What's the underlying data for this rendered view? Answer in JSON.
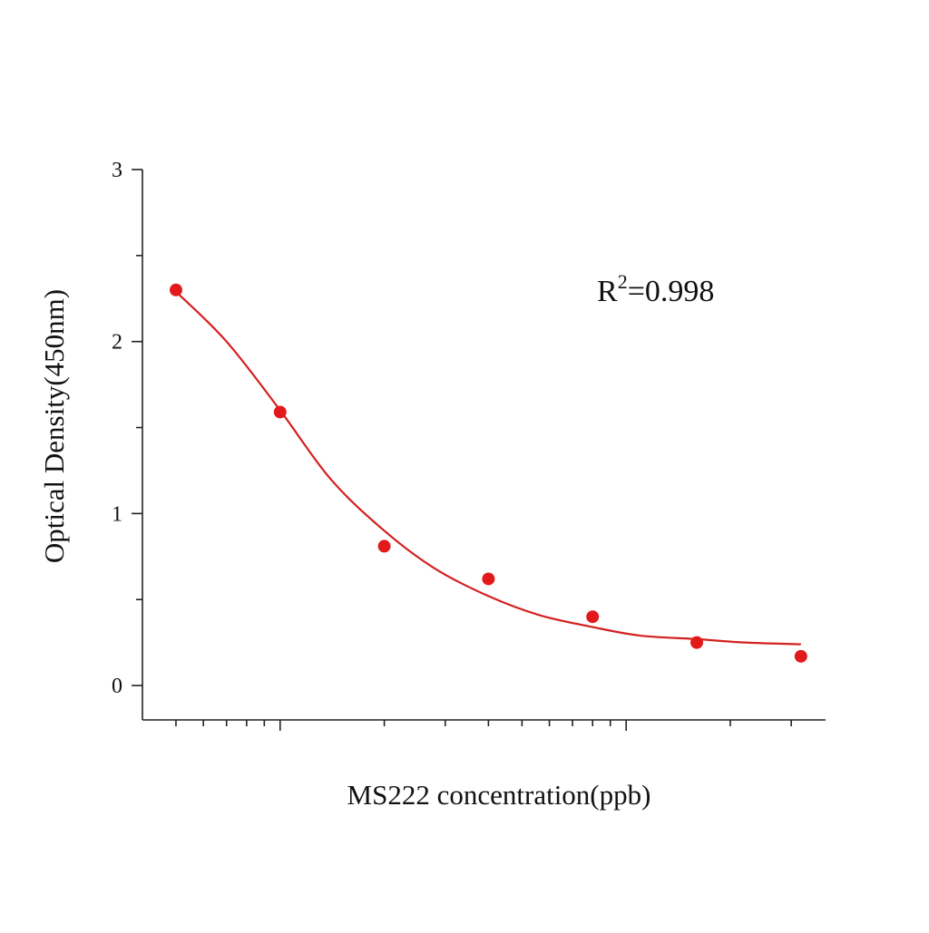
{
  "chart_data": {
    "type": "scatter",
    "x_label": "MS222 concentration(ppb)",
    "y_label": "Optical Density(450nm)",
    "annotation": {
      "base": "R",
      "sup": "2",
      "text": "=0.998"
    },
    "x_scale": "log",
    "xlim": [
      0.4,
      37.7
    ],
    "xticks": [
      1,
      10
    ],
    "xminorticks": [
      0.5,
      0.6,
      0.7,
      0.8,
      0.9,
      2,
      3,
      4,
      5,
      6,
      7,
      8,
      9,
      20,
      30
    ],
    "ylim": [
      -0.2,
      3
    ],
    "yticks": [
      0,
      1,
      2,
      3
    ],
    "yminorticks": [
      0.5,
      1.5,
      2.5
    ],
    "x": [
      0.5,
      1,
      2,
      4,
      8,
      16,
      32
    ],
    "values": [
      2.3,
      1.59,
      0.81,
      0.62,
      0.4,
      0.25,
      0.17
    ],
    "color": "#e31a1c",
    "fit": {
      "color": "#d42020",
      "x": [
        0.5,
        0.7,
        1,
        1.4,
        2,
        2.8,
        4,
        5.6,
        8,
        11,
        16,
        22,
        32
      ],
      "values": [
        2.29,
        2.0,
        1.6,
        1.2,
        0.9,
        0.68,
        0.52,
        0.41,
        0.34,
        0.29,
        0.27,
        0.25,
        0.24
      ]
    }
  }
}
